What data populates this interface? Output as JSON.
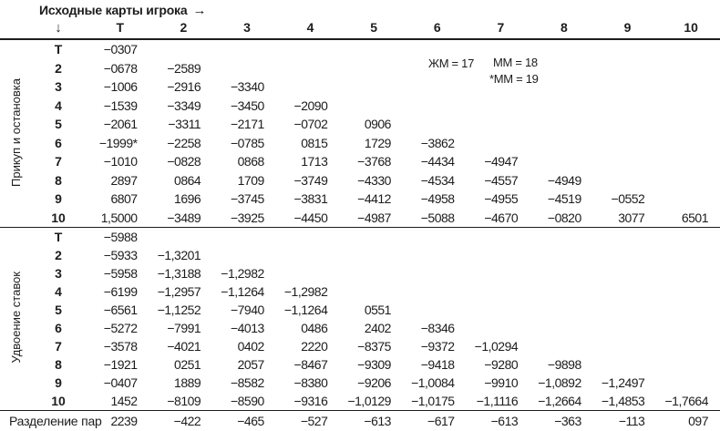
{
  "header": {
    "title": "Исходные карты игрока",
    "right_arrow": "→",
    "down_arrow": "↓",
    "columns": [
      "Т",
      "2",
      "3",
      "4",
      "5",
      "6",
      "7",
      "8",
      "9",
      "10"
    ]
  },
  "notes": {
    "note1": "ЖМ = 17",
    "note2": "ММ = 18",
    "note3": "*ММ = 19"
  },
  "sections": [
    {
      "label": "Прикуп и остановка",
      "rows": [
        {
          "label": "Т",
          "values": [
            "−0307",
            "",
            "",
            "",
            "",
            "",
            "",
            "",
            "",
            ""
          ]
        },
        {
          "label": "2",
          "values": [
            "−0678",
            "−2589",
            "",
            "",
            "",
            "",
            "",
            "",
            "",
            ""
          ]
        },
        {
          "label": "3",
          "values": [
            "−1006",
            "−2916",
            "−3340",
            "",
            "",
            "",
            "",
            "",
            "",
            ""
          ]
        },
        {
          "label": "4",
          "values": [
            "−1539",
            "−3349",
            "−3450",
            "−2090",
            "",
            "",
            "",
            "",
            "",
            ""
          ]
        },
        {
          "label": "5",
          "values": [
            "−2061",
            "−3311",
            "−2171",
            "−0702",
            "0906",
            "",
            "",
            "",
            "",
            ""
          ]
        },
        {
          "label": "6",
          "values": [
            "−1999*",
            "−2258",
            "−0785",
            "0815",
            "1729",
            "−3862",
            "",
            "",
            "",
            ""
          ]
        },
        {
          "label": "7",
          "values": [
            "−1010",
            "−0828",
            "0868",
            "1713",
            "−3768",
            "−4434",
            "−4947",
            "",
            "",
            ""
          ]
        },
        {
          "label": "8",
          "values": [
            "2897",
            "0864",
            "1709",
            "−3749",
            "−4330",
            "−4534",
            "−4557",
            "−4949",
            "",
            ""
          ]
        },
        {
          "label": "9",
          "values": [
            "6807",
            "1696",
            "−3745",
            "−3831",
            "−4412",
            "−4958",
            "−4955",
            "−4519",
            "−0552",
            ""
          ]
        },
        {
          "label": "10",
          "values": [
            "1,5000",
            "−3489",
            "−3925",
            "−4450",
            "−4987",
            "−5088",
            "−4670",
            "−0820",
            "3077",
            "6501"
          ]
        }
      ]
    },
    {
      "label": "Удвоение ставок",
      "rows": [
        {
          "label": "Т",
          "values": [
            "−5988",
            "",
            "",
            "",
            "",
            "",
            "",
            "",
            "",
            ""
          ]
        },
        {
          "label": "2",
          "values": [
            "−5933",
            "−1,3201",
            "",
            "",
            "",
            "",
            "",
            "",
            "",
            ""
          ]
        },
        {
          "label": "3",
          "values": [
            "−5958",
            "−1,3188",
            "−1,2982",
            "",
            "",
            "",
            "",
            "",
            "",
            ""
          ]
        },
        {
          "label": "4",
          "values": [
            "−6199",
            "−1,2957",
            "−1,1264",
            "−1,2982",
            "",
            "",
            "",
            "",
            "",
            ""
          ]
        },
        {
          "label": "5",
          "values": [
            "−6561",
            "−1,1252",
            "−7940",
            "−1,1264",
            "0551",
            "",
            "",
            "",
            "",
            ""
          ]
        },
        {
          "label": "6",
          "values": [
            "−5272",
            "−7991",
            "−4013",
            "0486",
            "2402",
            "−8346",
            "",
            "",
            "",
            ""
          ]
        },
        {
          "label": "7",
          "values": [
            "−3578",
            "−4021",
            "0402",
            "2220",
            "−8375",
            "−9372",
            "−1,0294",
            "",
            "",
            ""
          ]
        },
        {
          "label": "8",
          "values": [
            "−1921",
            "0251",
            "2057",
            "−8467",
            "−9309",
            "−9418",
            "−9280",
            "−9898",
            "",
            ""
          ]
        },
        {
          "label": "9",
          "values": [
            "−0407",
            "1889",
            "−8582",
            "−8380",
            "−9206",
            "−1,0084",
            "−9910",
            "−1,0892",
            "−1,2497",
            ""
          ]
        },
        {
          "label": "10",
          "values": [
            "1452",
            "−8109",
            "−8590",
            "−9316",
            "−1,0129",
            "−1,0175",
            "−1,1116",
            "−1,2664",
            "−1,4853",
            "−1,7664"
          ]
        }
      ]
    }
  ],
  "split_row": {
    "label": "Разделение пар",
    "values": [
      "2239",
      "−422",
      "−465",
      "−527",
      "−613",
      "−617",
      "−613",
      "−363",
      "−113",
      "097"
    ]
  },
  "colors": {
    "text": "#1c1c1c",
    "rule": "#1c1c1c",
    "background": "#ffffff"
  }
}
